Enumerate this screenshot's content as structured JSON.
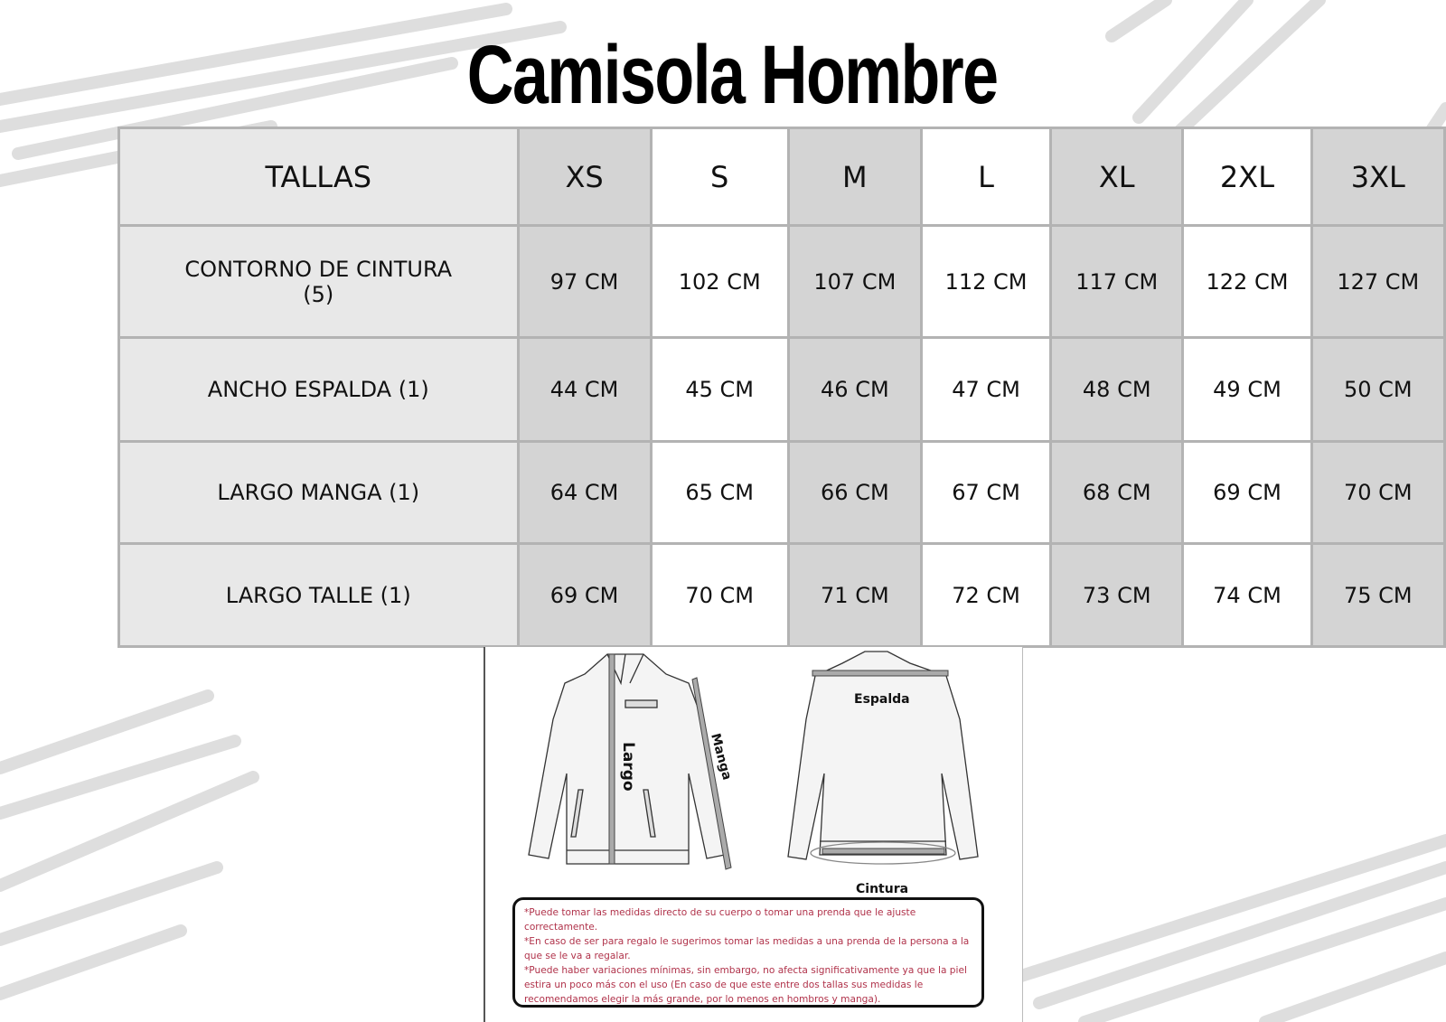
{
  "title": "Camisola Hombre",
  "table": {
    "header": [
      "TALLAS",
      "XS",
      "S",
      "M",
      "L",
      "XL",
      "2XL",
      "3XL"
    ],
    "rows": [
      {
        "label": "CONTORNO DE CINTURA (5)",
        "values": [
          "97 CM",
          "102 CM",
          "107 CM",
          "112 CM",
          "117 CM",
          "122 CM",
          "127 CM"
        ]
      },
      {
        "label": "ANCHO ESPALDA (1)",
        "values": [
          "44 CM",
          "45 CM",
          "46 CM",
          "47 CM",
          "48 CM",
          "49 CM",
          "50 CM"
        ]
      },
      {
        "label": "LARGO MANGA (1)",
        "values": [
          "64 CM",
          "65 CM",
          "66 CM",
          "67 CM",
          "68 CM",
          "69 CM",
          "70 CM"
        ]
      },
      {
        "label": "LARGO TALLE (1)",
        "values": [
          "69 CM",
          "70 CM",
          "71 CM",
          "72 CM",
          "73 CM",
          "74 CM",
          "75 CM"
        ]
      }
    ]
  },
  "diagram": {
    "labels": {
      "largo": "Largo",
      "manga": "Manga",
      "espalda": "Espalda",
      "cintura": "Cintura"
    }
  },
  "notes": [
    "*Puede tomar las medidas directo de su cuerpo o tomar una prenda que le ajuste correctamente.",
    "*En caso de ser para regalo le sugerimos tomar las medidas a una prenda de la persona a la que se le va a regalar.",
    "*Puede haber variaciones mínimas, sin embargo, no afecta significativamente ya que la piel estira un poco más con el uso (En caso de que este entre dos tallas sus medidas le recomendamos elegir la más grande, por lo menos en hombros y manga)."
  ],
  "colors": {
    "note_text": "#b0324a",
    "shade": "#d4d4d4",
    "label_col": "#e8e8e8",
    "border": "#b3b3b3"
  }
}
